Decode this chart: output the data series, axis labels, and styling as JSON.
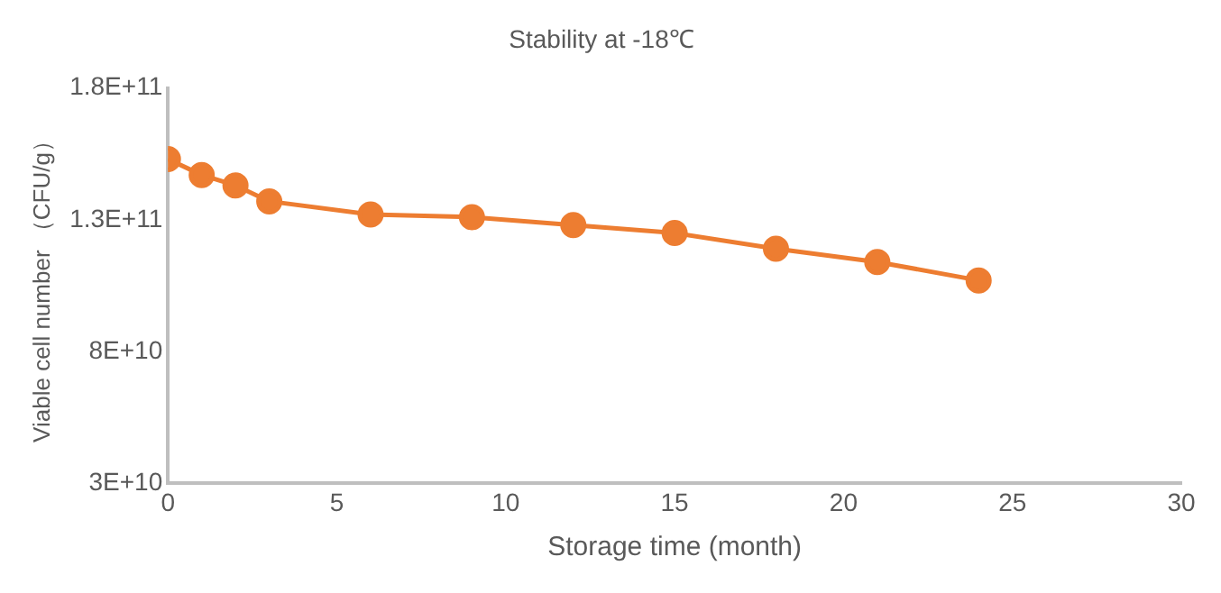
{
  "chart_data": {
    "type": "line",
    "title": "Stability at -18℃",
    "xlabel": "Storage time (month)",
    "ylabel": "Viable cell number （CFU/g）",
    "series": [
      {
        "color": "#ed7d31",
        "x": [
          0,
          1,
          2,
          3,
          6,
          9,
          12,
          15,
          18,
          21,
          24
        ],
        "values": [
          153000000000.0,
          147000000000.0,
          143000000000.0,
          137000000000.0,
          132000000000.0,
          131000000000.0,
          128000000000.0,
          125000000000.0,
          119000000000.0,
          114000000000.0,
          107000000000.0
        ]
      }
    ],
    "xlim": [
      0,
      30
    ],
    "xticks": [
      0,
      5,
      10,
      15,
      20,
      25,
      30
    ],
    "ylim": [
      30000000000.0,
      180000000000.0
    ],
    "yticks": [
      {
        "value": 30000000000.0,
        "label": "3E+10"
      },
      {
        "value": 80000000000.0,
        "label": "8E+10"
      },
      {
        "value": 130000000000.0,
        "label": "1.3E+11"
      },
      {
        "value": 180000000000.0,
        "label": "1.8E+11"
      }
    ],
    "marker": "circle",
    "line_style": "solid",
    "grid": false,
    "legend": false
  }
}
